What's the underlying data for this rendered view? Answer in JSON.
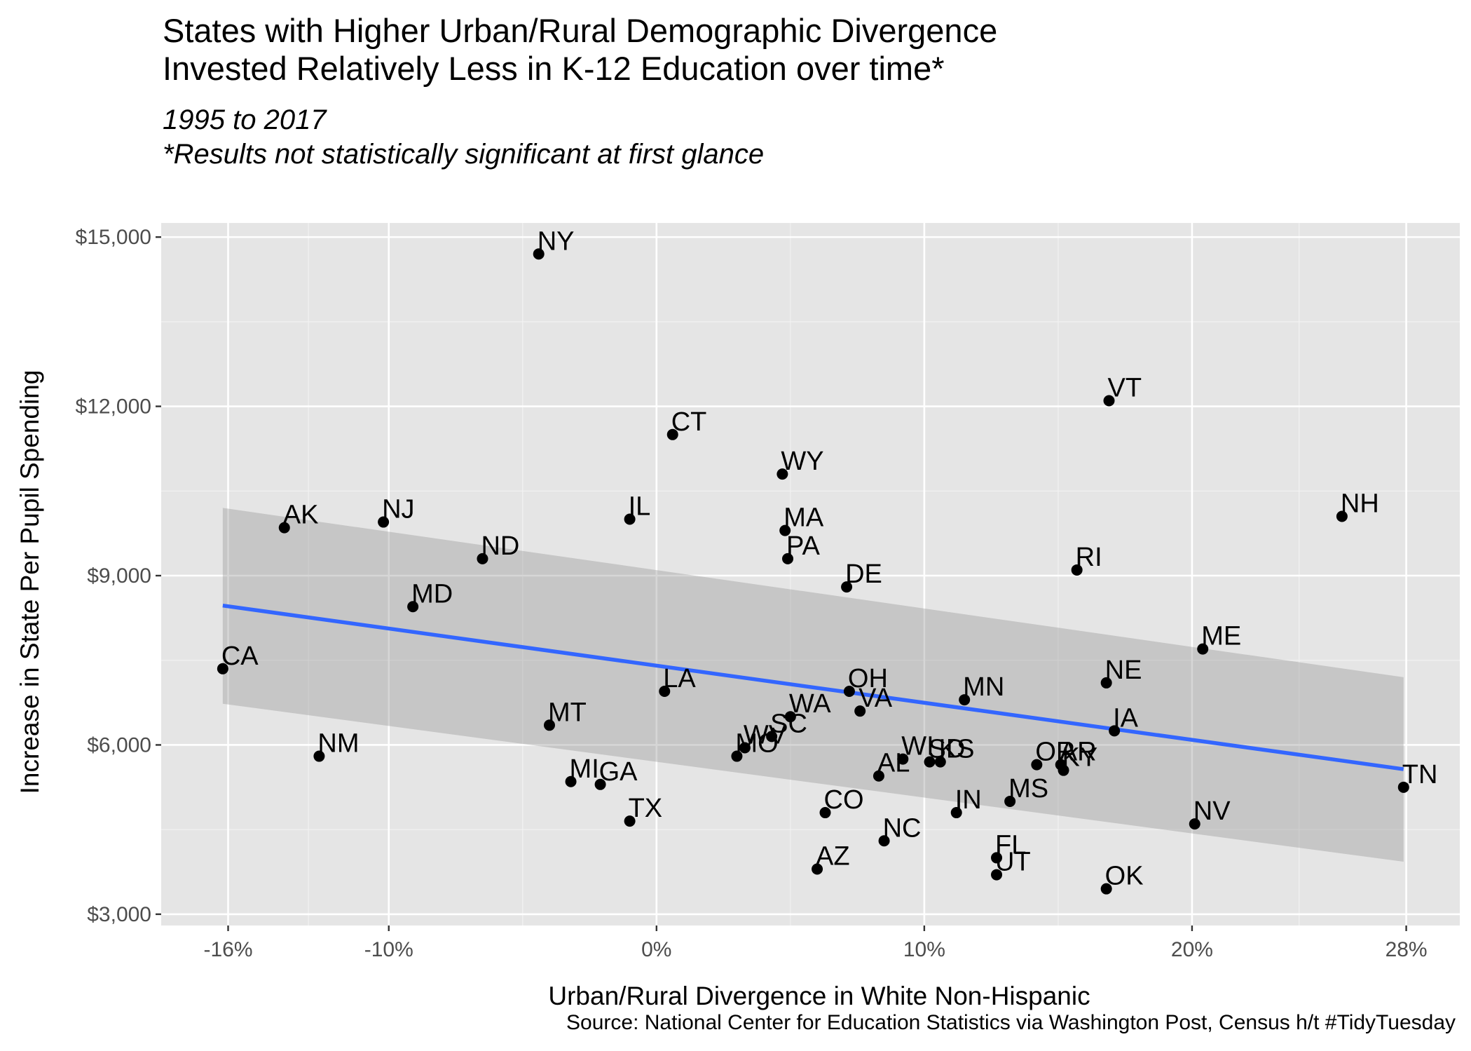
{
  "title_lines": [
    "States with Higher Urban/Rural Demographic Divergence",
    "Invested Relatively Less in K-12 Education over time*"
  ],
  "subtitle_lines": [
    "1995 to 2017",
    "*Results not statistically significant at first glance"
  ],
  "caption": "Source: National Center for Education Statistics via Washington Post, Census h/t #TidyTuesday",
  "chart_data": {
    "type": "scatter",
    "title": "States with Higher Urban/Rural Demographic Divergence Invested Relatively Less in K-12 Education over time*",
    "subtitle": "1995 to 2017 / *Results not statistically significant at first glance",
    "xlabel": "Urban/Rural Divergence in White Non-Hispanic",
    "ylabel": "Increase in State Per Pupil Spending",
    "xlim": [
      -18.5,
      30
    ],
    "ylim": [
      2800,
      15250
    ],
    "x_ticks": [
      -16,
      -10,
      0,
      10,
      20,
      28
    ],
    "x_tick_labels": [
      "-16%",
      "-10%",
      "0%",
      "10%",
      "20%",
      "28%"
    ],
    "x_minor_ticks": [
      -13,
      -5,
      5,
      15,
      24
    ],
    "y_ticks": [
      3000,
      6000,
      9000,
      12000,
      15000
    ],
    "y_tick_labels": [
      "$3,000",
      "$6,000",
      "$9,000",
      "$12,000",
      "$15,000"
    ],
    "y_minor_ticks": [
      4500,
      7500,
      10500,
      13500
    ],
    "grid": true,
    "panel_background": "#e5e5e5",
    "point_color": "#000000",
    "trend_color": "#3366ff",
    "band_color": "#999999",
    "points": [
      {
        "label": "NY",
        "x": -4.4,
        "y": 14700
      },
      {
        "label": "VT",
        "x": 16.9,
        "y": 12100
      },
      {
        "label": "CT",
        "x": 0.6,
        "y": 11500
      },
      {
        "label": "WY",
        "x": 4.7,
        "y": 10800
      },
      {
        "label": "NH",
        "x": 25.6,
        "y": 10050
      },
      {
        "label": "IL",
        "x": -1.0,
        "y": 10000
      },
      {
        "label": "NJ",
        "x": -10.2,
        "y": 9950
      },
      {
        "label": "AK",
        "x": -13.9,
        "y": 9850
      },
      {
        "label": "MA",
        "x": 4.8,
        "y": 9800
      },
      {
        "label": "ND",
        "x": -6.5,
        "y": 9300
      },
      {
        "label": "PA",
        "x": 4.9,
        "y": 9300
      },
      {
        "label": "RI",
        "x": 15.7,
        "y": 9100
      },
      {
        "label": "DE",
        "x": 7.1,
        "y": 8800
      },
      {
        "label": "MD",
        "x": -9.1,
        "y": 8450
      },
      {
        "label": "ME",
        "x": 20.4,
        "y": 7700
      },
      {
        "label": "CA",
        "x": -16.2,
        "y": 7350
      },
      {
        "label": "NE",
        "x": 16.8,
        "y": 7100
      },
      {
        "label": "LA",
        "x": 0.3,
        "y": 6950
      },
      {
        "label": "OH",
        "x": 7.2,
        "y": 6950
      },
      {
        "label": "MN",
        "x": 11.5,
        "y": 6800
      },
      {
        "label": "VA",
        "x": 7.6,
        "y": 6600
      },
      {
        "label": "WA",
        "x": 5.0,
        "y": 6500
      },
      {
        "label": "MT",
        "x": -4.0,
        "y": 6350
      },
      {
        "label": "IA",
        "x": 17.1,
        "y": 6250
      },
      {
        "label": "SC",
        "x": 4.3,
        "y": 6150
      },
      {
        "label": "WV",
        "x": 3.3,
        "y": 5950
      },
      {
        "label": "MO",
        "x": 3.0,
        "y": 5800
      },
      {
        "label": "NM",
        "x": -12.6,
        "y": 5800
      },
      {
        "label": "WI",
        "x": 9.2,
        "y": 5750
      },
      {
        "label": "SD",
        "x": 10.2,
        "y": 5700
      },
      {
        "label": "KS",
        "x": 10.6,
        "y": 5700
      },
      {
        "label": "OR",
        "x": 14.2,
        "y": 5650
      },
      {
        "label": "AR",
        "x": 15.1,
        "y": 5650
      },
      {
        "label": "KY",
        "x": 15.2,
        "y": 5550
      },
      {
        "label": "AL",
        "x": 8.3,
        "y": 5450
      },
      {
        "label": "MI",
        "x": -3.2,
        "y": 5350
      },
      {
        "label": "GA",
        "x": -2.1,
        "y": 5300
      },
      {
        "label": "TN",
        "x": 27.9,
        "y": 5250
      },
      {
        "label": "MS",
        "x": 13.2,
        "y": 5000
      },
      {
        "label": "CO",
        "x": 6.3,
        "y": 4800
      },
      {
        "label": "IN",
        "x": 11.2,
        "y": 4800
      },
      {
        "label": "TX",
        "x": -1.0,
        "y": 4650
      },
      {
        "label": "NV",
        "x": 20.1,
        "y": 4600
      },
      {
        "label": "NC",
        "x": 8.5,
        "y": 4300
      },
      {
        "label": "FL",
        "x": 12.7,
        "y": 4000
      },
      {
        "label": "AZ",
        "x": 6.0,
        "y": 3800
      },
      {
        "label": "UT",
        "x": 12.7,
        "y": 3700
      },
      {
        "label": "OK",
        "x": 16.8,
        "y": 3450
      }
    ],
    "trend_line": {
      "x": [
        -16.2,
        27.9
      ],
      "y": [
        8470,
        5570
      ]
    },
    "confidence_band": {
      "x": [
        -16.2,
        27.9
      ],
      "upper": [
        10200,
        7200
      ],
      "lower": [
        6730,
        3930
      ]
    }
  }
}
